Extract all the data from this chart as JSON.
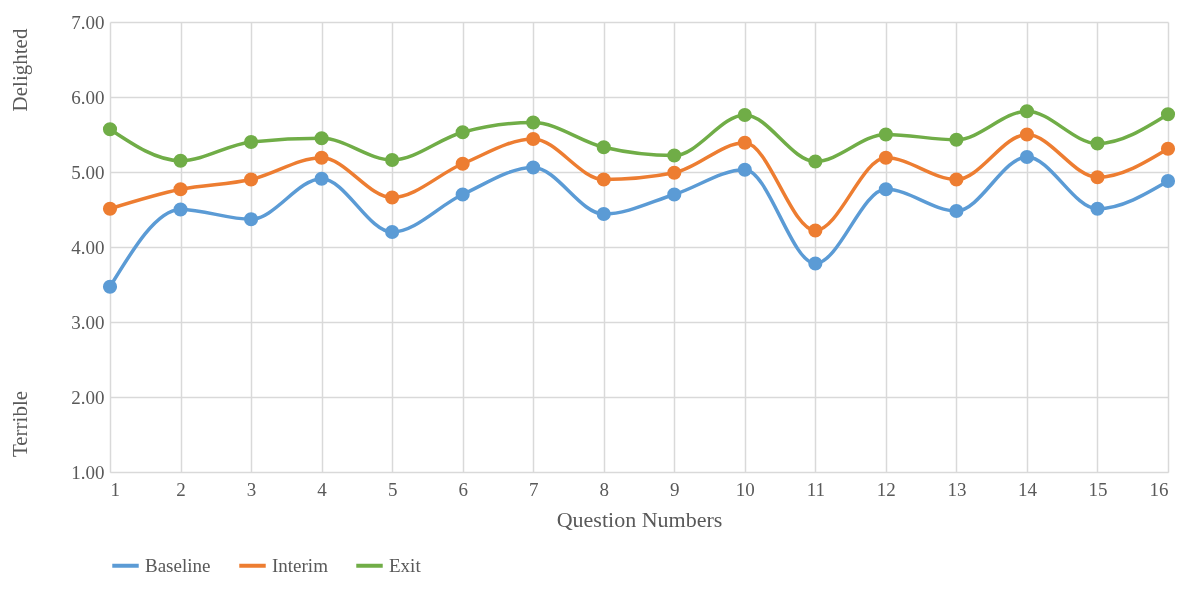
{
  "chart_data": {
    "type": "line",
    "xlabel": "Question Numbers",
    "annotations": [
      "Delighted",
      "Terrible"
    ],
    "x": [
      1,
      2,
      3,
      4,
      5,
      6,
      7,
      8,
      9,
      10,
      11,
      12,
      13,
      14,
      15,
      16
    ],
    "series": [
      {
        "name": "Baseline",
        "color": "#5b9bd5",
        "values": [
          3.47,
          4.5,
          4.37,
          4.91,
          4.2,
          4.7,
          5.06,
          4.44,
          4.7,
          5.03,
          3.78,
          4.77,
          4.48,
          5.2,
          4.51,
          4.88
        ]
      },
      {
        "name": "Interim",
        "color": "#ed7d31",
        "values": [
          4.51,
          4.77,
          4.9,
          5.19,
          4.66,
          5.11,
          5.44,
          4.9,
          4.99,
          5.39,
          4.22,
          5.19,
          4.9,
          5.5,
          4.93,
          5.31
        ]
      },
      {
        "name": "Exit",
        "color": "#70ad47",
        "values": [
          5.57,
          5.15,
          5.4,
          5.45,
          5.16,
          5.53,
          5.66,
          5.33,
          5.22,
          5.76,
          5.14,
          5.5,
          5.43,
          5.81,
          5.38,
          5.77
        ]
      }
    ],
    "xlim": [
      1,
      16
    ],
    "xticks": [
      1,
      2,
      3,
      4,
      5,
      6,
      7,
      8,
      9,
      10,
      11,
      12,
      13,
      14,
      15,
      16
    ],
    "ylim": [
      1,
      7
    ],
    "yticks": [
      {
        "value": 1,
        "label": "1.00"
      },
      {
        "value": 2,
        "label": "2.00"
      },
      {
        "value": 3,
        "label": "3.00"
      },
      {
        "value": 4,
        "label": "4.00"
      },
      {
        "value": 5,
        "label": "5.00"
      },
      {
        "value": 6,
        "label": "6.00"
      },
      {
        "value": 7,
        "label": "7.00"
      }
    ],
    "grid": true,
    "legend": "bottom",
    "marker": "circle",
    "line_style": "solid"
  }
}
